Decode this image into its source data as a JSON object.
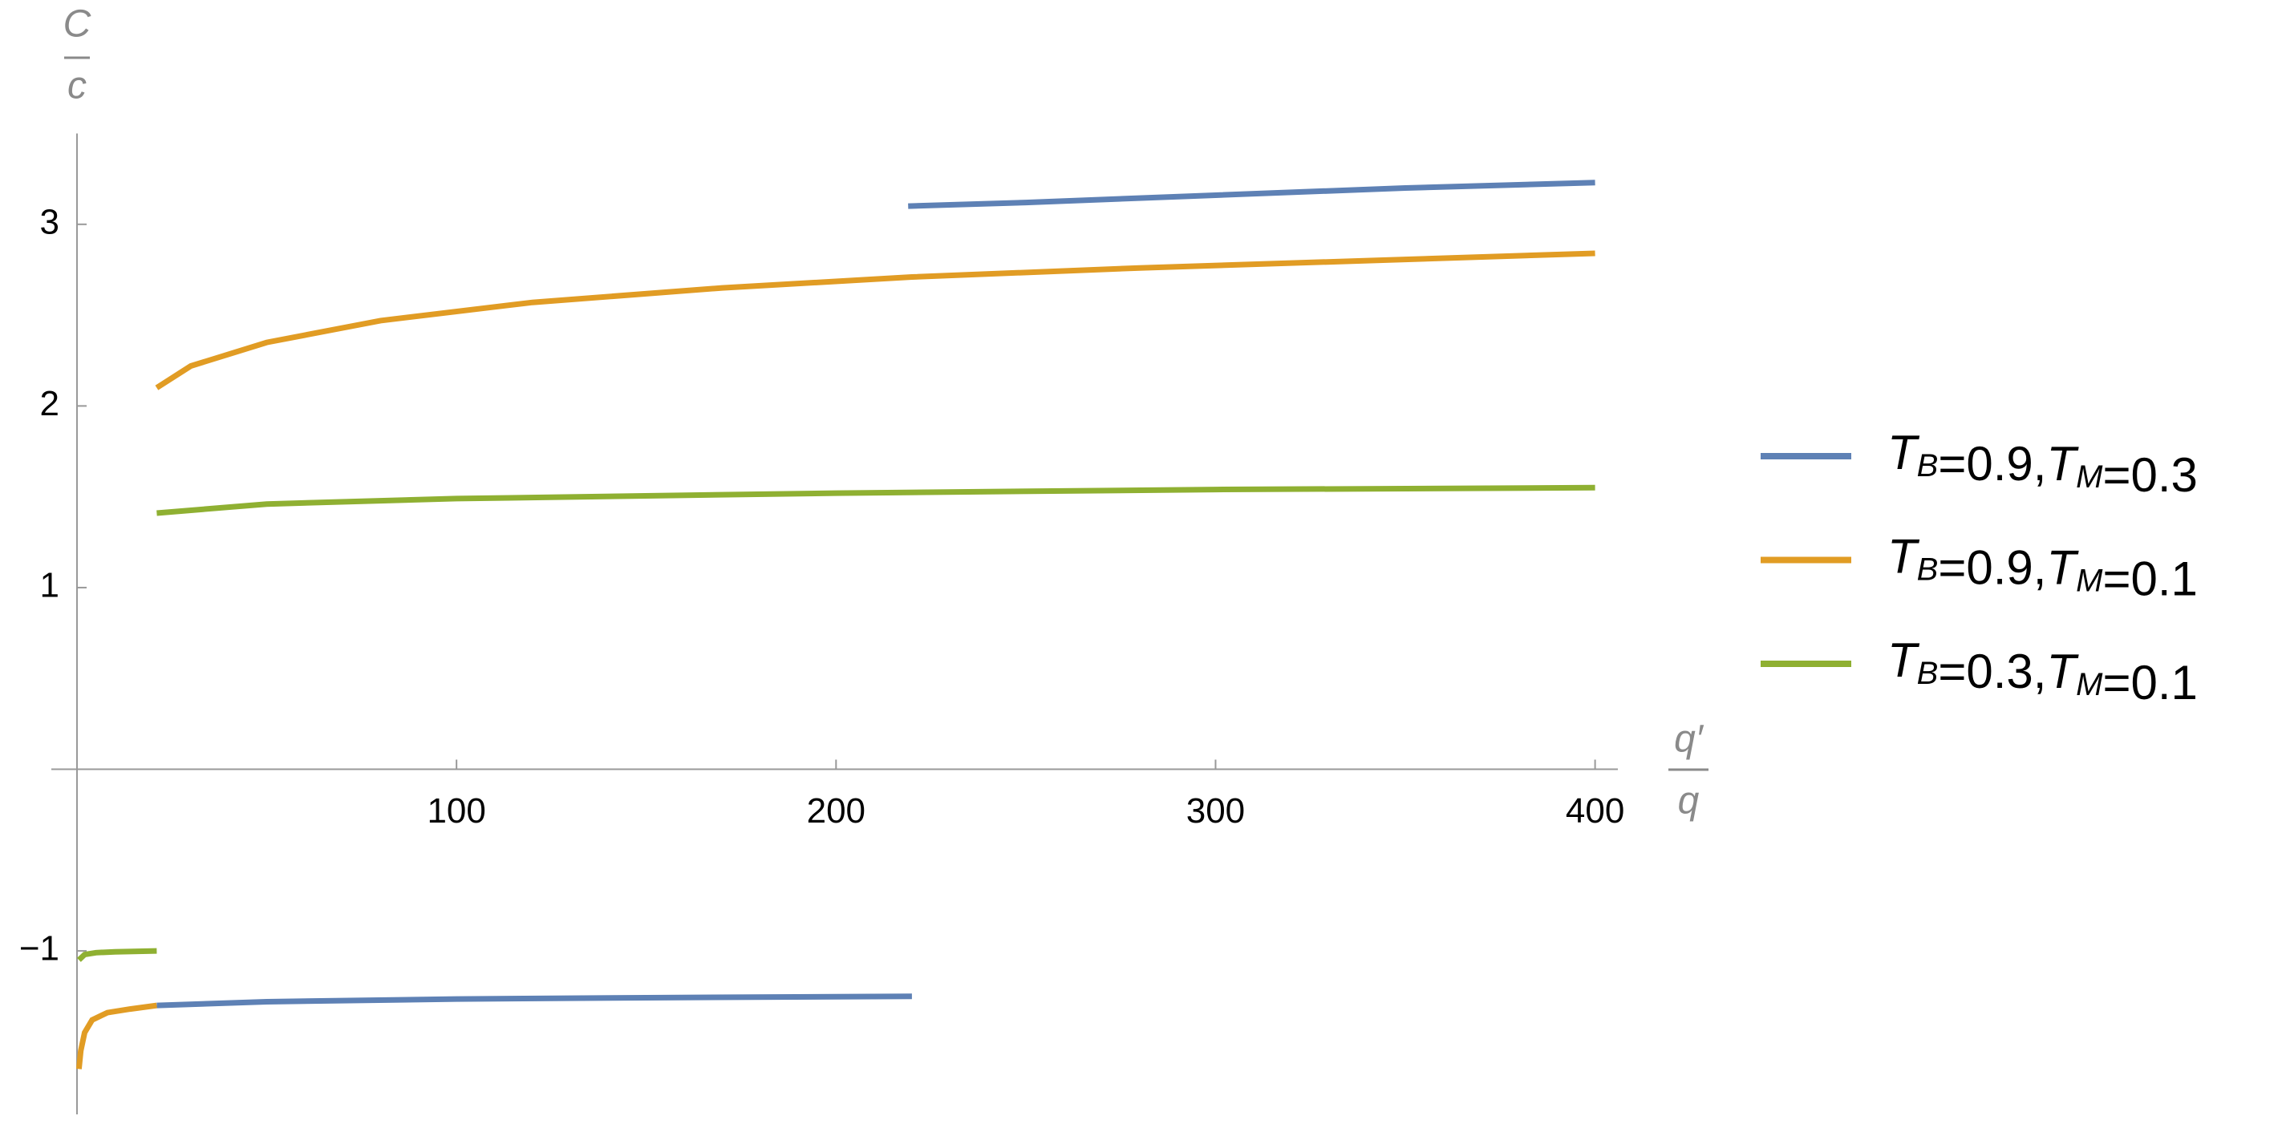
{
  "chart_data": {
    "type": "line",
    "y_label": {
      "numerator": "C",
      "denominator": "c"
    },
    "x_label": {
      "numerator": "q′",
      "denominator": "q"
    },
    "xlim": [
      0,
      406
    ],
    "ylim": [
      -1.9,
      3.5
    ],
    "xticks": [
      100,
      200,
      300,
      400
    ],
    "yticks": [
      {
        "value": -1,
        "label": "−1"
      },
      1,
      2,
      3
    ],
    "series": [
      {
        "name": "TB=0.9,TM=0.3",
        "color": "#5e81b5",
        "x": [
          21,
          50,
          100,
          150,
          220,
          220,
          219,
          250,
          300,
          350,
          400
        ],
        "values": [
          -1.3,
          -1.28,
          -1.265,
          -1.258,
          -1.25,
          null,
          3.1,
          3.12,
          3.16,
          3.2,
          3.23
        ]
      },
      {
        "name": "TB=0.9,TM=0.1",
        "color": "#e19c24",
        "x": [
          0.5,
          1,
          2,
          4,
          8,
          14,
          21,
          21,
          21,
          30,
          50,
          80,
          120,
          170,
          220,
          280,
          340,
          400
        ],
        "values": [
          -1.65,
          -1.55,
          -1.45,
          -1.38,
          -1.34,
          -1.32,
          -1.3,
          null,
          2.1,
          2.22,
          2.35,
          2.47,
          2.57,
          2.65,
          2.71,
          2.76,
          2.8,
          2.84
        ]
      },
      {
        "name": "TB=0.3,TM=0.1",
        "color": "#8fb032",
        "x": [
          0.5,
          2,
          5,
          10,
          21,
          21,
          21,
          50,
          100,
          200,
          300,
          400
        ],
        "values": [
          -1.05,
          -1.02,
          -1.01,
          -1.005,
          -1.0,
          null,
          1.41,
          1.46,
          1.49,
          1.52,
          1.54,
          1.55
        ]
      }
    ]
  }
}
